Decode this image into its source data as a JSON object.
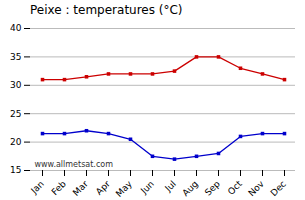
{
  "chart_data": {
    "type": "line",
    "title": "Peixe : temperatures (°C)",
    "categories": [
      "Jan",
      "Feb",
      "Mar",
      "Apr",
      "May",
      "Jun",
      "Jul",
      "Aug",
      "Sep",
      "Oct",
      "Nov",
      "Dec"
    ],
    "series": [
      {
        "color": "#cc0000",
        "values": [
          31.0,
          31.0,
          31.5,
          32.0,
          32.0,
          32.0,
          32.5,
          35.0,
          35.0,
          33.0,
          32.0,
          31.0
        ]
      },
      {
        "color": "#0000cc",
        "values": [
          21.5,
          21.5,
          22.0,
          21.5,
          20.5,
          17.5,
          17.0,
          17.5,
          18.0,
          21.0,
          21.5,
          21.5
        ]
      }
    ],
    "ylim": [
      15,
      40
    ],
    "yticks": [
      15,
      20,
      25,
      30,
      35,
      40
    ],
    "grid": true,
    "marker": "square",
    "annotations": [
      "www.allmetsat.com"
    ]
  }
}
